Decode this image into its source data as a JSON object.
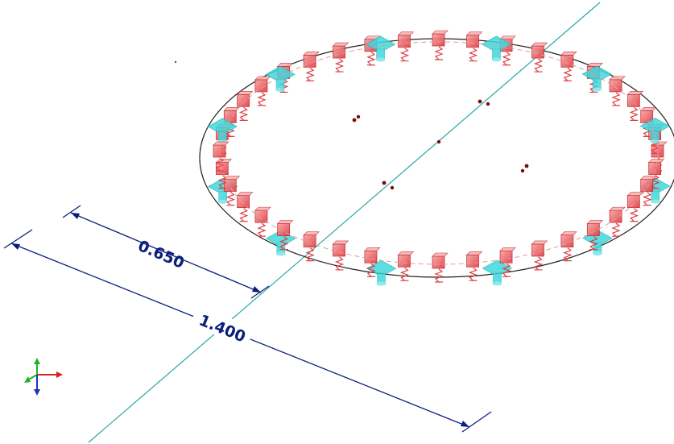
{
  "view": {
    "background": "#ffffff"
  },
  "dimensions": {
    "inner": {
      "label": "0.650"
    },
    "outer": {
      "label": "1.400"
    }
  },
  "structure": {
    "spring_count": 40,
    "support_count": 12,
    "spring_color": "#e8454a",
    "support_color": "#3fd8dc",
    "plate_outline_color": "#222222",
    "axis_line_color": "#2aa8a8",
    "dimension_color": "#0a1f7a",
    "node_color": "#7a0a0a"
  },
  "axes_indicator": {
    "x_color": "#e02020",
    "y_color": "#20b020",
    "z_color": "#2030c0"
  }
}
